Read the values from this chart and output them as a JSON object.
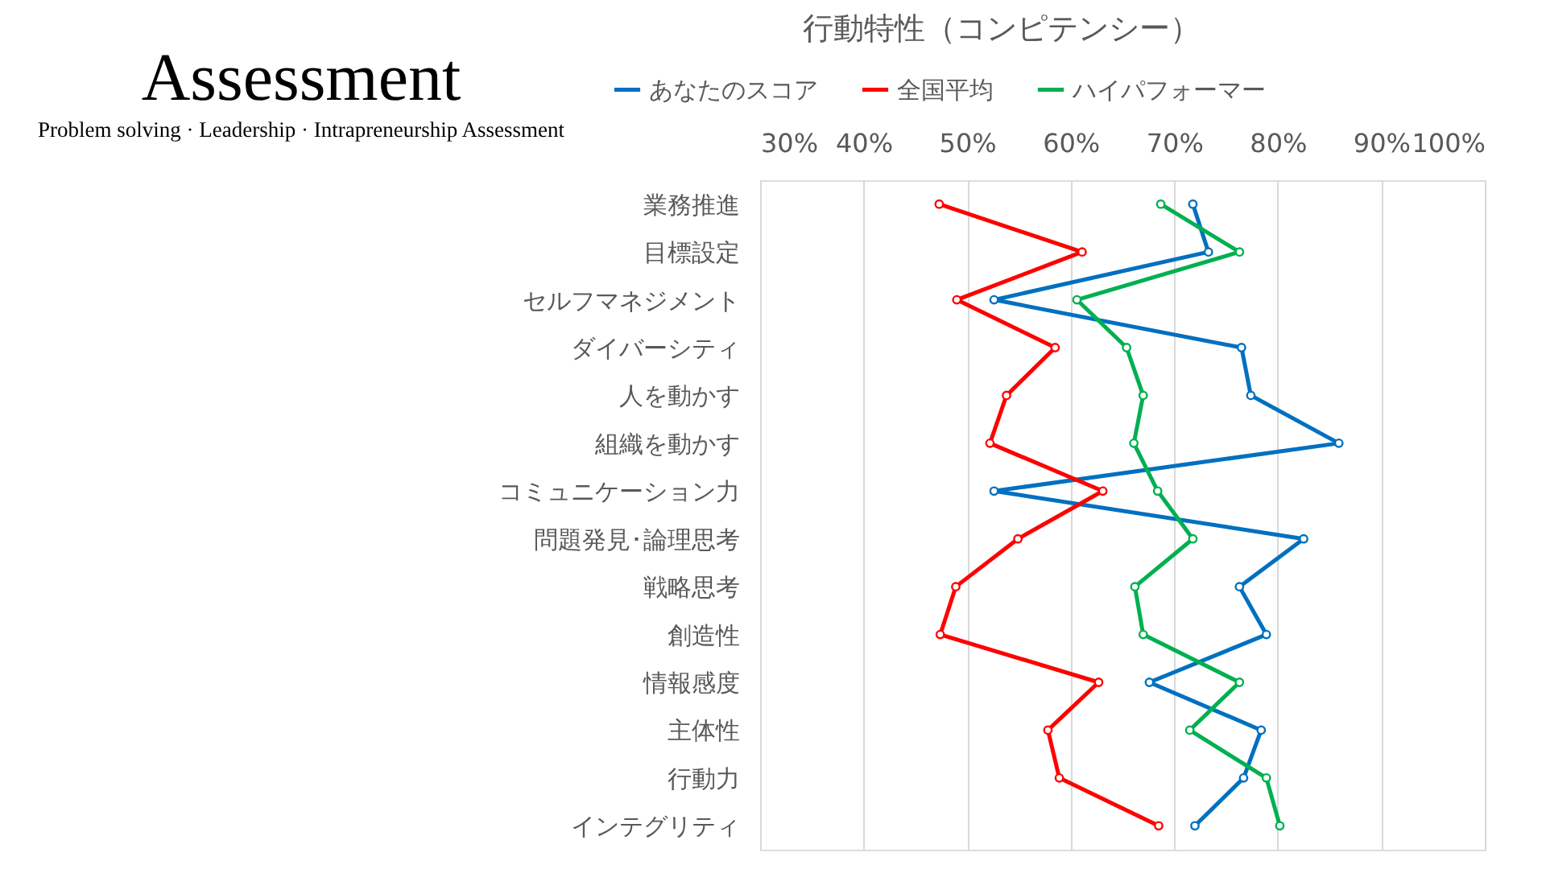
{
  "chart_data": {
    "type": "line",
    "orientation": "horizontal",
    "title": "行動特性（コンピテンシー）",
    "annotations": [
      "Assessment",
      "Problem solving · Leadership · Intrapreneurship Assessment"
    ],
    "categories": [
      "業務推進",
      "目標設定",
      "セルフマネジメント",
      "ダイバーシティ",
      "人を動かす",
      "組織を動かす",
      "コミュニケーション力",
      "問題発見･論理思考",
      "戦略思考",
      "創造性",
      "情報感度",
      "主体性",
      "行動力",
      "インテグリティ"
    ],
    "series": [
      {
        "name": "あなたのスコア",
        "color": "#0070c0",
        "values": [
          71.8,
          73.3,
          52.6,
          76.5,
          77.4,
          85.9,
          52.6,
          82.5,
          76.3,
          78.9,
          67.6,
          78.4,
          76.7,
          72.0
        ]
      },
      {
        "name": "全国平均",
        "color": "#ff0000",
        "values": [
          47.3,
          61.1,
          49.0,
          58.5,
          53.8,
          52.2,
          63.1,
          54.9,
          48.9,
          47.4,
          62.7,
          57.8,
          58.9,
          68.5
        ]
      },
      {
        "name": "ハイパフォーマー",
        "color": "#00b050",
        "values": [
          68.7,
          76.3,
          60.6,
          65.4,
          67.0,
          66.1,
          68.4,
          71.8,
          66.2,
          67.0,
          76.3,
          71.5,
          78.9,
          80.2
        ]
      }
    ],
    "xlim": [
      30,
      100
    ],
    "xticks": [
      {
        "value": 30,
        "label": "30%"
      },
      {
        "value": 40,
        "label": "40%"
      },
      {
        "value": 50,
        "label": "50%"
      },
      {
        "value": 60,
        "label": "60%"
      },
      {
        "value": 70,
        "label": "70%"
      },
      {
        "value": 80,
        "label": "80%"
      },
      {
        "value": 90,
        "label": "90%"
      },
      {
        "value": 100,
        "label": "100%"
      }
    ],
    "grid": "x",
    "legend": "top",
    "marker": "circle",
    "line_style": "solid"
  }
}
